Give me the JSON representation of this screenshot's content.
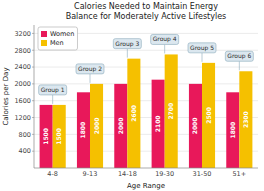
{
  "chart_data": {
    "type": "bar",
    "title": "Calories Needed to Maintain Energy\nBalance for Moderately Active Lifestyles",
    "x_label": "Age Range",
    "y_label": "Calories per Day",
    "categories": [
      "4-8",
      "9-13",
      "14-18",
      "19-30",
      "31-50",
      "51+"
    ],
    "series": [
      {
        "name": "Women",
        "color": "#E8185A",
        "values": [
          1500,
          1800,
          2000,
          2100,
          2000,
          1800
        ]
      },
      {
        "name": "Men",
        "color": "#F5C000",
        "values": [
          1500,
          2000,
          2600,
          2700,
          2500,
          2300
        ]
      }
    ],
    "annotations": [
      "Group 1",
      "Group 2",
      "Group 3",
      "Group 4",
      "Group 5",
      "Group 6"
    ],
    "ylim": [
      0,
      3400
    ],
    "yticks": [
      400,
      800,
      1200,
      1600,
      2000,
      2400,
      2800,
      3200
    ],
    "grid": true,
    "legend": "upper left",
    "data_labels": true
  }
}
